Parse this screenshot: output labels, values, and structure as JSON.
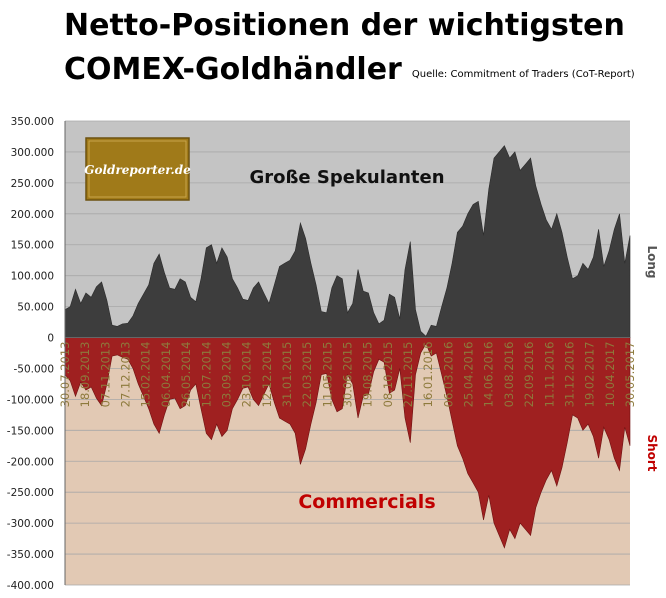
{
  "title_line1": "Netto-Positionen der wichtigsten",
  "title_line2": "COMEX-Goldhändler",
  "source": "Quelle: Commitment of Traders (CoT-Report)",
  "logo_text": "Goldreporter.de",
  "colors": {
    "long_area": "#3d3d3d",
    "short_area": "#9f2020",
    "top_bg": "#c4c4c4",
    "bottom_bg": "#e2c9b4",
    "short_label": "#c00000",
    "date_label": "#8d7a3c"
  },
  "chart_data": {
    "type": "area",
    "ylim": [
      -400000,
      350000
    ],
    "y_ticks": [
      "350.000",
      "300.000",
      "250.000",
      "200.000",
      "150.000",
      "100.000",
      "50.000",
      "0",
      "-50.000",
      "-100.000",
      "-150.000",
      "-200.000",
      "-250.000",
      "-300.000",
      "-350.000",
      "-400.000"
    ],
    "x_ticks": [
      "30.07.2013",
      "18.09.2013",
      "07.11.2013",
      "27.12.2013",
      "15.02.2014",
      "06.04.2014",
      "26.05.2014",
      "15.07.2014",
      "03.09.2014",
      "23.10.2014",
      "12.12.2014",
      "31.01.2015",
      "22.03.2015",
      "11.05.2015",
      "30.06.2015",
      "19.08.2015",
      "08.10.2015",
      "27.11.2015",
      "16.01.2016",
      "06.03.2016",
      "25.04.2016",
      "14.06.2016",
      "03.08.2016",
      "22.09.2016",
      "11.11.2016",
      "31.12.2016",
      "19.02.2017",
      "10.04.2017",
      "30.05.2017"
    ],
    "series": [
      {
        "name": "Große Spekulanten",
        "side_label": "Long",
        "values": [
          45000,
          50000,
          78000,
          55000,
          72000,
          65000,
          82000,
          90000,
          60000,
          20000,
          18000,
          22000,
          23000,
          35000,
          55000,
          70000,
          85000,
          120000,
          135000,
          105000,
          80000,
          78000,
          95000,
          90000,
          65000,
          58000,
          95000,
          145000,
          150000,
          120000,
          145000,
          130000,
          95000,
          80000,
          62000,
          60000,
          80000,
          90000,
          72000,
          55000,
          85000,
          115000,
          120000,
          125000,
          140000,
          185000,
          160000,
          120000,
          85000,
          42000,
          40000,
          80000,
          100000,
          95000,
          40000,
          55000,
          110000,
          75000,
          72000,
          40000,
          22000,
          28000,
          70000,
          65000,
          30000,
          110000,
          155000,
          45000,
          10000,
          2000,
          20000,
          18000,
          50000,
          80000,
          120000,
          170000,
          180000,
          200000,
          215000,
          220000,
          165000,
          240000,
          290000,
          300000,
          310000,
          290000,
          300000,
          270000,
          280000,
          290000,
          245000,
          215000,
          190000,
          175000,
          200000,
          170000,
          130000,
          95000,
          100000,
          120000,
          110000,
          130000,
          175000,
          115000,
          140000,
          175000,
          200000,
          120000,
          165000
        ]
      },
      {
        "name": "Commercials",
        "side_label": "Short",
        "values": [
          -60000,
          -70000,
          -95000,
          -72000,
          -85000,
          -80000,
          -98000,
          -110000,
          -75000,
          -30000,
          -28000,
          -32000,
          -35000,
          -50000,
          -75000,
          -95000,
          -115000,
          -140000,
          -155000,
          -125000,
          -100000,
          -98000,
          -115000,
          -110000,
          -85000,
          -75000,
          -115000,
          -155000,
          -165000,
          -140000,
          -160000,
          -150000,
          -115000,
          -100000,
          -82000,
          -80000,
          -100000,
          -110000,
          -92000,
          -75000,
          -105000,
          -130000,
          -135000,
          -140000,
          -155000,
          -205000,
          -180000,
          -140000,
          -105000,
          -60000,
          -58000,
          -100000,
          -120000,
          -115000,
          -60000,
          -75000,
          -130000,
          -95000,
          -92000,
          -55000,
          -35000,
          -40000,
          -90000,
          -85000,
          -50000,
          -130000,
          -170000,
          -60000,
          -25000,
          -10000,
          -30000,
          -25000,
          -60000,
          -95000,
          -135000,
          -175000,
          -195000,
          -220000,
          -235000,
          -250000,
          -295000,
          -255000,
          -300000,
          -320000,
          -340000,
          -310000,
          -325000,
          -300000,
          -310000,
          -320000,
          -275000,
          -250000,
          -230000,
          -215000,
          -240000,
          -210000,
          -170000,
          -125000,
          -130000,
          -150000,
          -140000,
          -160000,
          -195000,
          -145000,
          -165000,
          -195000,
          -215000,
          -145000,
          -175000
        ]
      }
    ],
    "top_label": "Große Spekulanten",
    "bottom_label": "Commercials",
    "right_label_top": "Long",
    "right_label_bottom": "Short",
    "grid": true
  }
}
